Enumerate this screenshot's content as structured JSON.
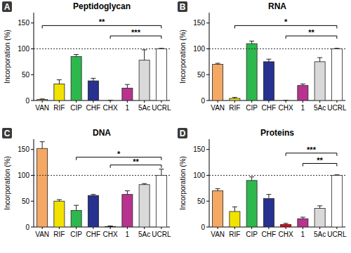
{
  "chart_data": [
    {
      "type": "bar",
      "panel_label": "A",
      "title": "Peptidoglycan",
      "ylabel": "Incorporation (%)",
      "categories": [
        "VAN",
        "RIF",
        "CIP",
        "CHF",
        "CHX",
        "1",
        "5Ac",
        "UCRL"
      ],
      "values": [
        2,
        32,
        85,
        38,
        0,
        24,
        78,
        100
      ],
      "errors": [
        1,
        8,
        4,
        5,
        0.5,
        7,
        20,
        1
      ],
      "colors": [
        "#f4a864",
        "#f2e200",
        "#2db84d",
        "#27318f",
        "#e3001b",
        "#b7338f",
        "#d9d9d9",
        "#ffffff"
      ],
      "ylim": [
        0,
        170
      ],
      "yticks": [
        0,
        50,
        100,
        150
      ],
      "reference_line": 100,
      "annotations": [
        {
          "from": "VAN",
          "to": "UCRL",
          "y": 145,
          "text": "**"
        },
        {
          "from": "CHX",
          "to": "UCRL",
          "y": 125,
          "text": "***"
        }
      ]
    },
    {
      "type": "bar",
      "panel_label": "B",
      "title": "RNA",
      "ylabel": "Incorporation (%)",
      "categories": [
        "VAN",
        "RIF",
        "CIP",
        "CHF",
        "CHX",
        "1",
        "5Ac",
        "UCRL"
      ],
      "values": [
        70,
        4,
        110,
        75,
        0,
        29,
        75,
        100
      ],
      "errors": [
        2,
        2,
        5,
        5,
        0.5,
        3,
        8,
        1
      ],
      "colors": [
        "#f4a864",
        "#f2e200",
        "#2db84d",
        "#27318f",
        "#e3001b",
        "#b7338f",
        "#d9d9d9",
        "#ffffff"
      ],
      "ylim": [
        0,
        170
      ],
      "yticks": [
        0,
        50,
        100,
        150
      ],
      "reference_line": 100,
      "annotations": [
        {
          "from": "RIF",
          "to": "UCRL",
          "y": 145,
          "text": "*"
        },
        {
          "from": "CHX",
          "to": "UCRL",
          "y": 125,
          "text": "**"
        }
      ]
    },
    {
      "type": "bar",
      "panel_label": "C",
      "title": "DNA",
      "ylabel": "Incorporation (%)",
      "categories": [
        "VAN",
        "RIF",
        "CIP",
        "CHF",
        "CHX",
        "1",
        "5Ac",
        "UCRL"
      ],
      "values": [
        152,
        50,
        32,
        61,
        1,
        63,
        82,
        100
      ],
      "errors": [
        13,
        3,
        10,
        2,
        1,
        7,
        2,
        12
      ],
      "colors": [
        "#f4a864",
        "#f2e200",
        "#2db84d",
        "#27318f",
        "#e3001b",
        "#b7338f",
        "#d9d9d9",
        "#ffffff"
      ],
      "ylim": [
        0,
        170
      ],
      "yticks": [
        0,
        50,
        100,
        150
      ],
      "reference_line": 100,
      "annotations": [
        {
          "from": "CIP",
          "to": "UCRL",
          "y": 135,
          "text": "*"
        },
        {
          "from": "CHX",
          "to": "UCRL",
          "y": 120,
          "text": "**"
        }
      ]
    },
    {
      "type": "bar",
      "panel_label": "D",
      "title": "Proteins",
      "ylabel": "Incorporation (%)",
      "categories": [
        "VAN",
        "RIF",
        "CIP",
        "CHF",
        "CHX",
        "1",
        "5Ac",
        "UCRL"
      ],
      "values": [
        70,
        30,
        90,
        55,
        5,
        16,
        36,
        100
      ],
      "errors": [
        4,
        9,
        7,
        8,
        2,
        3,
        5,
        1
      ],
      "colors": [
        "#f4a864",
        "#f2e200",
        "#2db84d",
        "#27318f",
        "#e3001b",
        "#b7338f",
        "#d9d9d9",
        "#ffffff"
      ],
      "ylim": [
        0,
        170
      ],
      "yticks": [
        0,
        50,
        100,
        150
      ],
      "reference_line": 100,
      "annotations": [
        {
          "from": "CHX",
          "to": "UCRL",
          "y": 143,
          "text": "***"
        },
        {
          "from": "1",
          "to": "UCRL",
          "y": 123,
          "text": "**"
        }
      ]
    }
  ]
}
